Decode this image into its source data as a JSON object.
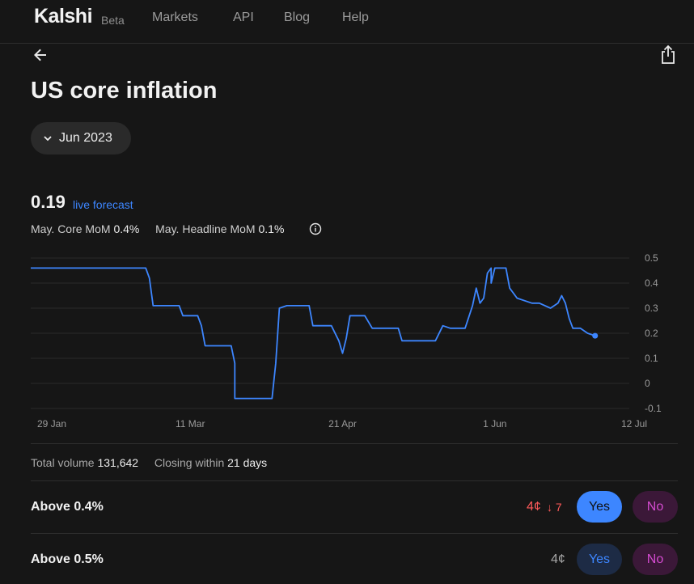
{
  "nav": {
    "logo": "Kalshi",
    "badge": "Beta",
    "links": [
      "Markets",
      "API",
      "Blog",
      "Help"
    ]
  },
  "page": {
    "title": "US core inflation",
    "month": "Jun 2023"
  },
  "forecast": {
    "value": "0.19",
    "label": "live forecast",
    "core_label": "May. Core MoM",
    "core_value": "0.4%",
    "headline_label": "May. Headline MoM",
    "headline_value": "0.1%"
  },
  "chart_data": {
    "type": "line",
    "x_ticks": [
      "29 Jan",
      "11 Mar",
      "21 Apr",
      "1 Jun",
      "12 Jul"
    ],
    "y_ticks": [
      "0.5",
      "0.4",
      "0.3",
      "0.2",
      "0.1",
      "0",
      "-0.1"
    ],
    "ylim": [
      -0.1,
      0.5
    ],
    "xlim": [
      "2023-01-29",
      "2023-07-12"
    ],
    "grid": true,
    "series": [
      {
        "color": "#3d86ff",
        "points": [
          [
            "2023-01-29",
            0.46
          ],
          [
            "2023-02-27",
            0.46
          ],
          [
            "2023-02-28",
            0.42
          ],
          [
            "2023-02-29",
            0.31
          ],
          [
            "2023-03-08",
            0.31
          ],
          [
            "2023-03-09",
            0.27
          ],
          [
            "2023-03-13",
            0.27
          ],
          [
            "2023-03-14",
            0.23
          ],
          [
            "2023-03-15",
            0.15
          ],
          [
            "2023-03-22",
            0.15
          ],
          [
            "2023-03-23",
            0.08
          ],
          [
            "2023-03-23",
            -0.06
          ],
          [
            "2023-04-02",
            -0.06
          ],
          [
            "2023-04-03",
            0.08
          ],
          [
            "2023-04-04",
            0.3
          ],
          [
            "2023-04-06",
            0.31
          ],
          [
            "2023-04-12",
            0.31
          ],
          [
            "2023-04-13",
            0.23
          ],
          [
            "2023-04-18",
            0.23
          ],
          [
            "2023-04-20",
            0.17
          ],
          [
            "2023-04-21",
            0.12
          ],
          [
            "2023-04-22",
            0.18
          ],
          [
            "2023-04-23",
            0.27
          ],
          [
            "2023-04-27",
            0.27
          ],
          [
            "2023-04-29",
            0.22
          ],
          [
            "2023-05-06",
            0.22
          ],
          [
            "2023-05-07",
            0.17
          ],
          [
            "2023-05-16",
            0.17
          ],
          [
            "2023-05-18",
            0.23
          ],
          [
            "2023-05-20",
            0.22
          ],
          [
            "2023-05-24",
            0.22
          ],
          [
            "2023-05-26",
            0.31
          ],
          [
            "2023-05-27",
            0.38
          ],
          [
            "2023-05-28",
            0.32
          ],
          [
            "2023-05-29",
            0.34
          ],
          [
            "2023-05-30",
            0.44
          ],
          [
            "2023-05-31",
            0.46
          ],
          [
            "2023-05-31",
            0.4
          ],
          [
            "2023-06-01",
            0.46
          ],
          [
            "2023-06-04",
            0.46
          ],
          [
            "2023-06-05",
            0.38
          ],
          [
            "2023-06-07",
            0.34
          ],
          [
            "2023-06-11",
            0.32
          ],
          [
            "2023-06-13",
            0.32
          ],
          [
            "2023-06-16",
            0.3
          ],
          [
            "2023-06-18",
            0.32
          ],
          [
            "2023-06-19",
            0.35
          ],
          [
            "2023-06-20",
            0.32
          ],
          [
            "2023-06-21",
            0.26
          ],
          [
            "2023-06-22",
            0.22
          ],
          [
            "2023-06-24",
            0.22
          ],
          [
            "2023-06-26",
            0.2
          ],
          [
            "2023-06-28",
            0.19
          ]
        ]
      }
    ]
  },
  "market": {
    "volume_label": "Total volume",
    "volume_value": "131,642",
    "closing_label": "Closing within",
    "closing_value": "21 days"
  },
  "contracts": [
    {
      "label": "Above 0.4%",
      "price": "4¢",
      "change": "↓ 7",
      "yes": "Yes",
      "no": "No"
    },
    {
      "label": "Above 0.5%",
      "price": "4¢",
      "change": "",
      "yes": "Yes",
      "no": "No"
    }
  ],
  "colors": {
    "accent": "#3d86ff",
    "negative": "#ff5a5a",
    "no": "#d44bd0"
  }
}
